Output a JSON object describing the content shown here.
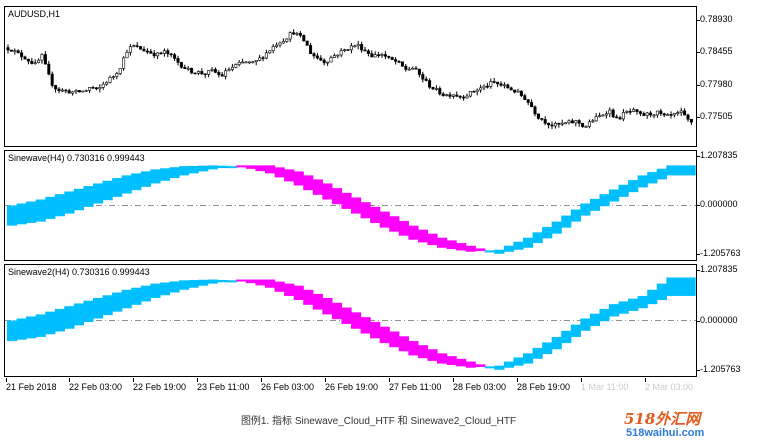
{
  "caption": "图例1. 指标 Sinewave_Cloud_HTF 和 Sinewave2_Cloud_HTF",
  "watermark": {
    "brand": "518外汇网",
    "url": "518waihui.com"
  },
  "colors": {
    "up_cloud": "#00bfff",
    "down_cloud": "#ff00ff",
    "candle": "#000000",
    "zero_line": "#808080"
  },
  "x_axis_labels": [
    "21 Feb 2018",
    "22 Feb 03:00",
    "22 Feb 19:00",
    "23 Feb 11:00",
    "26 Feb 03:00",
    "26 Feb 19:00",
    "27 Feb 11:00",
    "28 Feb 03:00",
    "28 Feb 19:00",
    "1 Mar 11:00",
    "2 Mar 03:00"
  ],
  "panes": [
    {
      "id": "price",
      "label": "AUDUSD,H1",
      "y_ticks": [
        "0.78930",
        "0.78455",
        "0.77980",
        "0.77505"
      ]
    },
    {
      "id": "ind1",
      "label": "Sinewave(H4) 0.730316 0.999443",
      "y_ticks": [
        "1.207835",
        "0.000000",
        "-1.205763"
      ]
    },
    {
      "id": "ind2",
      "label": "Sinewave2(H4) 0.730316 0.999443",
      "y_ticks": [
        "1.207835",
        "0.000000",
        "-1.205763"
      ]
    }
  ],
  "chart_data": [
    {
      "type": "candlestick",
      "title": "AUDUSD,H1",
      "ylim": [
        0.7735,
        0.7905
      ],
      "series": [
        {
          "name": "AUDUSD",
          "close_path": [
            [
              0,
              0.786
            ],
            [
              6,
              0.7858
            ],
            [
              12,
              0.7852
            ],
            [
              20,
              0.7846
            ],
            [
              24,
              0.7842
            ],
            [
              32,
              0.7835
            ],
            [
              36,
              0.7852
            ],
            [
              40,
              0.7836
            ],
            [
              46,
              0.7812
            ],
            [
              52,
              0.7802
            ],
            [
              60,
              0.78
            ],
            [
              70,
              0.7798
            ],
            [
              80,
              0.78
            ],
            [
              86,
              0.7806
            ],
            [
              92,
              0.78
            ],
            [
              100,
              0.7812
            ],
            [
              108,
              0.782
            ],
            [
              114,
              0.783
            ],
            [
              122,
              0.7856
            ],
            [
              128,
              0.7862
            ],
            [
              136,
              0.7858
            ],
            [
              144,
              0.7854
            ],
            [
              152,
              0.785
            ],
            [
              160,
              0.7854
            ],
            [
              168,
              0.7846
            ],
            [
              176,
              0.7836
            ],
            [
              184,
              0.7828
            ],
            [
              192,
              0.7826
            ],
            [
              200,
              0.7824
            ],
            [
              208,
              0.7828
            ],
            [
              216,
              0.782
            ],
            [
              224,
              0.783
            ],
            [
              232,
              0.7836
            ],
            [
              240,
              0.784
            ],
            [
              248,
              0.7838
            ],
            [
              256,
              0.7846
            ],
            [
              264,
              0.7856
            ],
            [
              272,
              0.7866
            ],
            [
              280,
              0.7872
            ],
            [
              288,
              0.7882
            ],
            [
              294,
              0.7876
            ],
            [
              300,
              0.7868
            ],
            [
              306,
              0.7852
            ],
            [
              312,
              0.7846
            ],
            [
              320,
              0.784
            ],
            [
              328,
              0.7848
            ],
            [
              336,
              0.7854
            ],
            [
              344,
              0.786
            ],
            [
              352,
              0.7864
            ],
            [
              360,
              0.7856
            ],
            [
              368,
              0.7848
            ],
            [
              376,
              0.7852
            ],
            [
              384,
              0.7844
            ],
            [
              392,
              0.784
            ],
            [
              400,
              0.783
            ],
            [
              408,
              0.7832
            ],
            [
              416,
              0.782
            ],
            [
              424,
              0.7808
            ],
            [
              432,
              0.78
            ],
            [
              440,
              0.7794
            ],
            [
              448,
              0.7796
            ],
            [
              456,
              0.7792
            ],
            [
              464,
              0.7796
            ],
            [
              472,
              0.7802
            ],
            [
              480,
              0.7806
            ],
            [
              488,
              0.7812
            ],
            [
              496,
              0.7808
            ],
            [
              504,
              0.7804
            ],
            [
              512,
              0.7798
            ],
            [
              520,
              0.779
            ],
            [
              526,
              0.778
            ],
            [
              532,
              0.7766
            ],
            [
              540,
              0.7758
            ],
            [
              548,
              0.7752
            ],
            [
              556,
              0.7754
            ],
            [
              564,
              0.7756
            ],
            [
              572,
              0.7758
            ],
            [
              580,
              0.775
            ],
            [
              588,
              0.776
            ],
            [
              596,
              0.7766
            ],
            [
              604,
              0.7774
            ],
            [
              612,
              0.776
            ],
            [
              620,
              0.777
            ],
            [
              628,
              0.7772
            ],
            [
              636,
              0.7766
            ],
            [
              644,
              0.7768
            ],
            [
              652,
              0.777
            ],
            [
              660,
              0.7764
            ],
            [
              668,
              0.7766
            ],
            [
              676,
              0.777
            ],
            [
              684,
              0.7758
            ],
            [
              692,
              0.7756
            ]
          ]
        }
      ]
    },
    {
      "type": "area",
      "title": "Sinewave(H4) 0.730316 0.999443",
      "ylim": [
        -1.205763,
        1.207835
      ],
      "series": [
        {
          "name": "Sinewave",
          "values": [
            0.0,
            0.15,
            0.35,
            0.55,
            0.75,
            0.9,
            0.98,
            1.0,
            0.97,
            0.8,
            0.5,
            0.15,
            -0.2,
            -0.55,
            -0.85,
            -1.05,
            -1.15,
            -1.1,
            -0.8,
            -0.4,
            0.05,
            0.4,
            0.75,
            1.0
          ]
        },
        {
          "name": "Lead",
          "values": [
            -0.5,
            -0.4,
            -0.2,
            0.05,
            0.3,
            0.55,
            0.75,
            0.9,
            1.0,
            1.0,
            0.85,
            0.55,
            0.2,
            -0.15,
            -0.5,
            -0.8,
            -1.0,
            -1.2,
            -1.05,
            -0.7,
            -0.25,
            0.1,
            0.45,
            0.75
          ]
        }
      ]
    },
    {
      "type": "area",
      "title": "Sinewave2(H4) 0.730316 0.999443",
      "ylim": [
        -1.205763,
        1.207835
      ],
      "series": [
        {
          "name": "Sinewave2",
          "values": [
            0.0,
            0.15,
            0.35,
            0.55,
            0.75,
            0.9,
            0.98,
            1.0,
            0.97,
            0.8,
            0.5,
            0.15,
            -0.2,
            -0.55,
            -0.85,
            -1.05,
            -1.15,
            -1.1,
            -0.8,
            -0.4,
            0.05,
            0.4,
            0.6,
            1.05
          ]
        },
        {
          "name": "Lead2",
          "values": [
            -0.5,
            -0.4,
            -0.2,
            0.05,
            0.3,
            0.55,
            0.75,
            0.9,
            1.0,
            1.0,
            0.85,
            0.55,
            0.2,
            -0.15,
            -0.5,
            -0.8,
            -1.0,
            -1.2,
            -1.05,
            -0.7,
            -0.25,
            0.1,
            0.3,
            0.6
          ]
        }
      ]
    }
  ]
}
